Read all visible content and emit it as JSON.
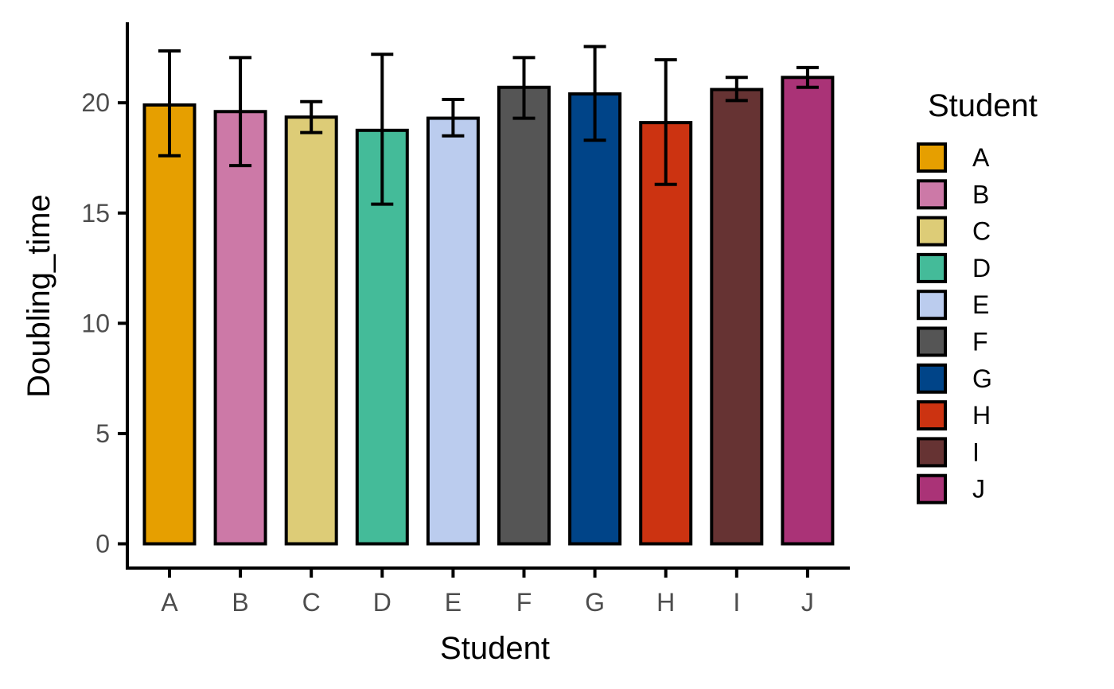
{
  "chart_data": {
    "type": "bar",
    "title": "",
    "xlabel": "Student",
    "ylabel": "Doubling_time",
    "ylim": [
      0,
      24
    ],
    "yticks": [
      "0",
      "5",
      "10",
      "15",
      "20"
    ],
    "categories": [
      "A",
      "B",
      "C",
      "D",
      "E",
      "F",
      "G",
      "H",
      "I",
      "J"
    ],
    "values": [
      19.9,
      19.6,
      19.35,
      18.75,
      19.3,
      20.7,
      20.4,
      19.1,
      20.6,
      21.15
    ],
    "error_low": [
      17.6,
      17.15,
      18.65,
      15.4,
      18.5,
      19.3,
      18.3,
      16.3,
      20.1,
      20.7
    ],
    "error_high": [
      22.35,
      22.05,
      20.05,
      22.2,
      20.15,
      22.05,
      22.55,
      21.95,
      21.15,
      21.6
    ],
    "colors": [
      "#E69F00",
      "#CC79A7",
      "#DDCC77",
      "#44BB99",
      "#BBCCEE",
      "#555555",
      "#004488",
      "#CC3311",
      "#663333",
      "#AA3377"
    ],
    "grid": false,
    "legend": {
      "title": "Student",
      "placement": "right",
      "entries": [
        "A",
        "B",
        "C",
        "D",
        "E",
        "F",
        "G",
        "H",
        "I",
        "J"
      ]
    }
  }
}
